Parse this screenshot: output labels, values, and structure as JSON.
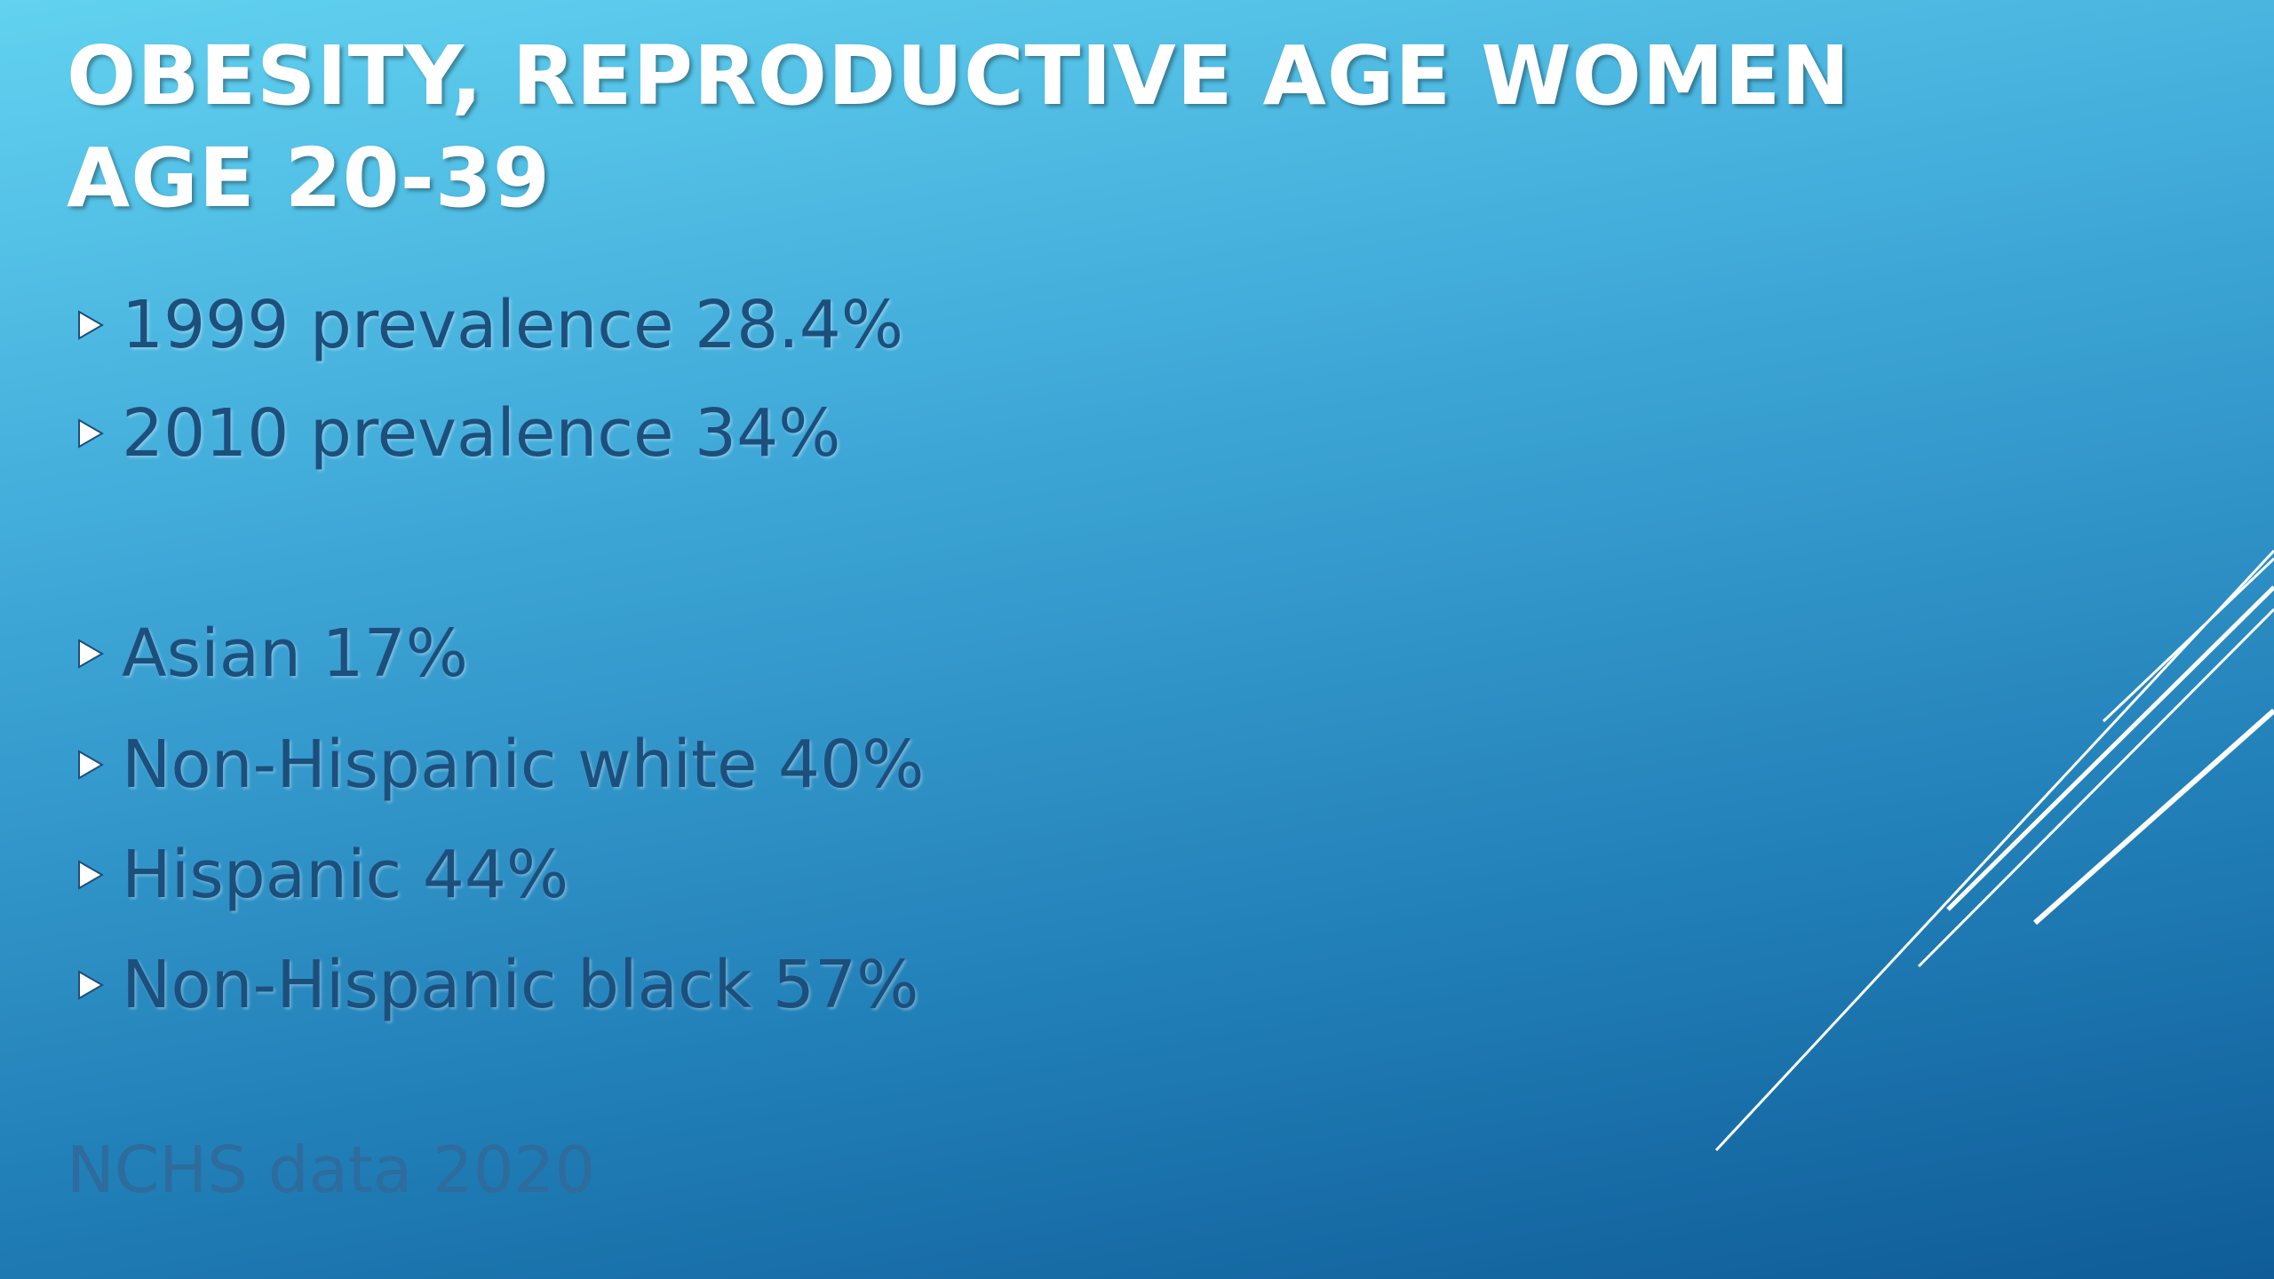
{
  "slide": {
    "title": [
      "OBESITY, REPRODUCTIVE AGE WOMEN",
      "AGE 20-39"
    ],
    "bullets": [
      "1999 prevalence 28.4%",
      "2010 prevalence 34%",
      "Asian 17%",
      "Non-Hispanic white 40%",
      "Hispanic 44%",
      "Non-Hispanic black 57%"
    ],
    "source": "NCHS data 2020"
  }
}
